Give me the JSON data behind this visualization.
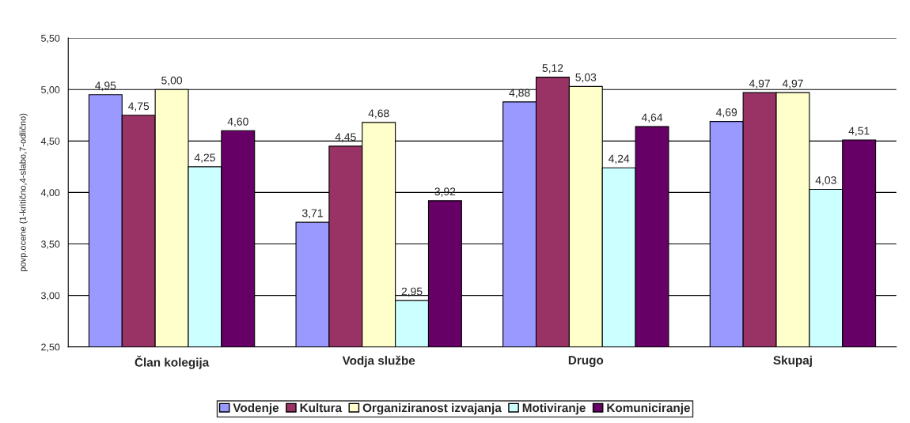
{
  "chart_data": {
    "type": "bar",
    "ylabel": "povp.ocene (1-kritično,4-slabo,7-odlično)",
    "categories": [
      "Član kolegija",
      "Vodja službe",
      "Drugo",
      "Skupaj"
    ],
    "series": [
      {
        "name": "Vodenje",
        "color": "#9999ff",
        "values": [
          4.95,
          3.71,
          4.88,
          4.69
        ],
        "value_labels": [
          "4,95",
          "3,71",
          "4,88",
          "4,69"
        ]
      },
      {
        "name": "Kultura",
        "color": "#993366",
        "values": [
          4.75,
          4.45,
          5.12,
          4.97
        ],
        "value_labels": [
          "4,75",
          "4,45",
          "5,12",
          "4,97"
        ]
      },
      {
        "name": "Organiziranost izvajanja",
        "color": "#ffffcc",
        "values": [
          5.0,
          4.68,
          5.03,
          4.97
        ],
        "value_labels": [
          "5,00",
          "4,68",
          "5,03",
          "4,97"
        ]
      },
      {
        "name": "Motiviranje",
        "color": "#ccffff",
        "values": [
          4.25,
          2.95,
          4.24,
          4.03
        ],
        "value_labels": [
          "4,25",
          "2,95",
          "4,24",
          "4,03"
        ]
      },
      {
        "name": "Komuniciranje",
        "color": "#660066",
        "values": [
          4.6,
          3.92,
          4.64,
          4.51
        ],
        "value_labels": [
          "4,60",
          "3,92",
          "4,64",
          "4,51"
        ]
      }
    ],
    "ylim": [
      2.5,
      5.5
    ],
    "yticks": [
      {
        "value": 2.5,
        "label": "2,50"
      },
      {
        "value": 3.0,
        "label": "3,00"
      },
      {
        "value": 3.5,
        "label": "3,50"
      },
      {
        "value": 4.0,
        "label": "4,00"
      },
      {
        "value": 4.5,
        "label": "4,50"
      },
      {
        "value": 5.0,
        "label": "5,00"
      },
      {
        "value": 5.5,
        "label": "5,50"
      }
    ],
    "grid": "y",
    "legend": "bottom"
  }
}
